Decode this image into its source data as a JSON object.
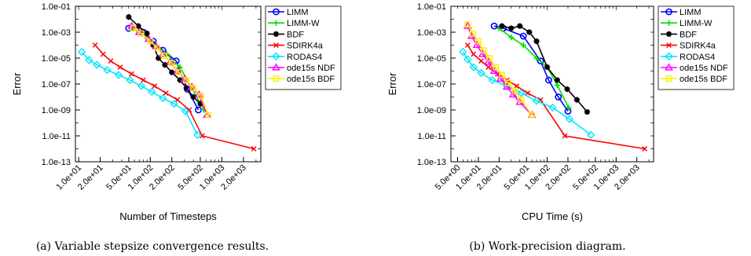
{
  "chart_data": [
    {
      "type": "line",
      "caption": "(a) Variable stepsize convergence results.",
      "xlabel": "Number of Timesteps",
      "ylabel": "Error",
      "xscale": "log",
      "yscale": "log",
      "xlim": [
        9,
        3500
      ],
      "ylim": [
        1e-13,
        0.1
      ],
      "xticks": [
        10,
        20,
        50,
        100,
        200,
        500,
        1000,
        2000
      ],
      "xtick_labels": [
        "1.0e+01",
        "2.0e+01",
        "5.0e+01",
        "1.0e+02",
        "2.0e+02",
        "5.0e+02",
        "1.0e+03",
        "2.0e+03"
      ],
      "yticks": [
        0.1,
        0.001,
        1e-05,
        1e-07,
        1e-09,
        1e-11,
        1e-13
      ],
      "ytick_labels": [
        "1.0e-01",
        "1.0e-03",
        "1.0e-05",
        "1.0e-07",
        "1.0e-09",
        "1.0e-11",
        "1.0e-13"
      ],
      "legend_position": "outside-right",
      "series": [
        {
          "name": "LIMM",
          "color": "#0000ff",
          "marker": "circle",
          "x": [
            50,
            80,
            110,
            150,
            230,
            330,
            470
          ],
          "y": [
            0.002,
            0.001,
            0.0002,
            4e-05,
            6e-06,
            4e-08,
            1e-09
          ]
        },
        {
          "name": "LIMM-W",
          "color": "#00dd00",
          "marker": "plus",
          "x": [
            55,
            85,
            120,
            170,
            260,
            380,
            560
          ],
          "y": [
            0.002,
            0.0005,
            0.0001,
            2e-05,
            2e-06,
            5e-08,
            1e-09
          ]
        },
        {
          "name": "BDF",
          "color": "#000000",
          "marker": "asterisk",
          "x": [
            50,
            68,
            90,
            110,
            130,
            160,
            200,
            260,
            320,
            400,
            500
          ],
          "y": [
            0.015,
            0.003,
            0.0008,
            0.0001,
            1e-05,
            3e-06,
            8e-07,
            2e-07,
            5e-08,
            1e-08,
            3e-09
          ]
        },
        {
          "name": "SDIRK4a",
          "color": "#ff0000",
          "marker": "x",
          "x": [
            17,
            22,
            28,
            38,
            55,
            80,
            115,
            165,
            240,
            350,
            530,
            2800
          ],
          "y": [
            0.0001,
            2e-05,
            6e-06,
            2e-06,
            6e-07,
            2e-07,
            7e-08,
            2e-08,
            6e-09,
            1e-09,
            1e-11,
            1e-12
          ]
        },
        {
          "name": "RODAS4",
          "color": "#00e5ff",
          "marker": "diamond",
          "x": [
            11,
            14,
            18,
            25,
            36,
            52,
            75,
            105,
            150,
            215,
            310,
            455
          ],
          "y": [
            3e-05,
            7e-06,
            3e-06,
            1.2e-06,
            5e-07,
            2e-07,
            7e-08,
            2.5e-08,
            8e-09,
            3e-09,
            8e-10,
            1.2e-11
          ]
        },
        {
          "name": "ode15s NDF",
          "color": "#ff00ff",
          "marker": "triangle",
          "x": [
            55,
            70,
            95,
            120,
            150,
            190,
            240,
            300,
            380,
            480,
            620
          ],
          "y": [
            0.003,
            0.001,
            0.0003,
            8e-05,
            2e-05,
            5e-06,
            1e-06,
            2.5e-07,
            6e-08,
            1.5e-08,
            4e-10
          ]
        },
        {
          "name": "ode15s BDF",
          "color": "#ffee00",
          "marker": "square",
          "x": [
            58,
            75,
            100,
            125,
            155,
            200,
            250,
            320,
            400,
            510,
            650
          ],
          "y": [
            0.002,
            0.0008,
            0.0002,
            6e-05,
            1.5e-05,
            4e-06,
            8e-07,
            2e-07,
            5e-08,
            1.2e-08,
            4e-10
          ]
        }
      ]
    },
    {
      "type": "line",
      "caption": "(b) Work-precision diagram.",
      "xlabel": "CPU Time (s)",
      "ylabel": "Error",
      "xscale": "log",
      "yscale": "log",
      "xlim": [
        4,
        3500
      ],
      "ylim": [
        1e-13,
        0.1
      ],
      "xticks": [
        5,
        10,
        20,
        50,
        100,
        200,
        500,
        1000,
        2000
      ],
      "xtick_labels": [
        "5.0e+00",
        "1.0e+01",
        "2.0e+01",
        "5.0e+01",
        "1.0e+02",
        "2.0e+02",
        "5.0e+02",
        "1.0e+03",
        "2.0e+03"
      ],
      "yticks": [
        0.1,
        0.001,
        1e-05,
        1e-07,
        1e-09,
        1e-11,
        1e-13
      ],
      "ytick_labels": [
        "1.0e-01",
        "1.0e-03",
        "1.0e-05",
        "1.0e-07",
        "1.0e-09",
        "1.0e-11",
        "1.0e-13"
      ],
      "legend_position": "outside-right",
      "series": [
        {
          "name": "LIMM",
          "color": "#0000ff",
          "marker": "circle",
          "x": [
            17,
            23,
            45,
            80,
            105,
            145,
            200
          ],
          "y": [
            0.003,
            0.002,
            0.0005,
            6e-06,
            2e-07,
            1e-08,
            8e-10
          ]
        },
        {
          "name": "LIMM-W",
          "color": "#00dd00",
          "marker": "plus",
          "x": [
            20,
            30,
            45,
            70,
            100,
            140,
            205
          ],
          "y": [
            0.002,
            0.0004,
            0.0001,
            1e-05,
            2e-06,
            8e-08,
            1.5e-09
          ]
        },
        {
          "name": "BDF",
          "color": "#000000",
          "marker": "asterisk",
          "x": [
            22,
            30,
            40,
            55,
            70,
            100,
            140,
            195,
            270,
            380
          ],
          "y": [
            0.003,
            0.002,
            0.003,
            0.001,
            0.0002,
            2e-06,
            2e-07,
            4e-08,
            6e-09,
            7e-10
          ]
        },
        {
          "name": "SDIRK4a",
          "color": "#ff0000",
          "marker": "x",
          "x": [
            7,
            8.5,
            11,
            14,
            19,
            26,
            36,
            52,
            80,
            180,
            2600
          ],
          "y": [
            0.0001,
            2e-05,
            6e-06,
            2e-06,
            6e-07,
            2e-07,
            7e-08,
            2e-08,
            6e-09,
            1e-11,
            1e-12
          ]
        },
        {
          "name": "RODAS4",
          "color": "#00e5ff",
          "marker": "diamond",
          "x": [
            6,
            7,
            8.5,
            11,
            16,
            26,
            42,
            70,
            120,
            210,
            430
          ],
          "y": [
            3e-05,
            8e-06,
            2e-06,
            7e-07,
            2e-07,
            7e-08,
            2e-08,
            5e-09,
            1.5e-09,
            2e-10,
            1.2e-11
          ]
        },
        {
          "name": "ode15s NDF",
          "color": "#ff00ff",
          "marker": "triangle",
          "x": [
            7,
            8,
            9.5,
            11.5,
            14,
            17,
            21,
            26,
            32,
            40,
            60
          ],
          "y": [
            0.003,
            0.0005,
            0.0001,
            2e-05,
            5e-06,
            1e-06,
            2.5e-07,
            6e-08,
            1.5e-08,
            4e-09,
            4e-10
          ]
        },
        {
          "name": "ode15s BDF",
          "color": "#ffee00",
          "marker": "square",
          "x": [
            7,
            8.3,
            10,
            12,
            14.5,
            18,
            22,
            27,
            34,
            42,
            60
          ],
          "y": [
            0.004,
            0.0008,
            0.0002,
            4e-05,
            1e-05,
            2e-06,
            5e-07,
            1.2e-07,
            3e-08,
            6e-09,
            4e-10
          ]
        }
      ]
    }
  ]
}
